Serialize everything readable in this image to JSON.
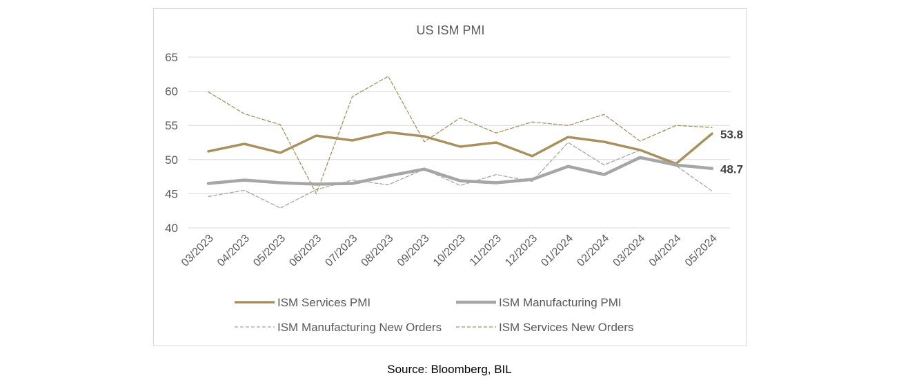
{
  "source_text": "Source: Bloomberg, BIL",
  "colors": {
    "services": "#A8915E",
    "manufacturing": "#A6A6A6",
    "manufacturing_new_orders": "#A6A6A6",
    "services_new_orders": "#A8915E",
    "gridline": "#d9d9d9",
    "axis_text": "#595959"
  },
  "chart_data": {
    "type": "line",
    "title": "US ISM PMI",
    "xlabel": "",
    "ylabel": "",
    "ylim": [
      40,
      65
    ],
    "yticks": [
      40,
      45,
      50,
      55,
      60,
      65
    ],
    "grid": true,
    "legend_position": "bottom",
    "x": [
      "03/2023",
      "04/2023",
      "05/2023",
      "06/2023",
      "07/2023",
      "08/2023",
      "09/2023",
      "10/2023",
      "11/2023",
      "12/2023",
      "01/2024",
      "02/2024",
      "03/2024",
      "04/2024",
      "05/2024"
    ],
    "series": [
      {
        "name": "ISM Services PMI",
        "style": "solid-thick",
        "color": "#A8915E",
        "values": [
          51.2,
          52.3,
          51.0,
          53.5,
          52.8,
          54.0,
          53.4,
          51.9,
          52.5,
          50.5,
          53.3,
          52.6,
          51.4,
          49.4,
          53.8
        ]
      },
      {
        "name": "ISM Manufacturing PMI",
        "style": "solid-thick",
        "color": "#A6A6A6",
        "values": [
          46.5,
          47.0,
          46.6,
          46.4,
          46.5,
          47.6,
          48.6,
          46.9,
          46.6,
          47.1,
          49.0,
          47.8,
          50.3,
          49.2,
          48.7
        ]
      },
      {
        "name": "ISM Manufacturing New Orders",
        "style": "dashed-thin",
        "color": "#A6A6A6",
        "values": [
          44.6,
          45.5,
          42.9,
          45.6,
          47.0,
          46.3,
          48.6,
          46.2,
          47.8,
          46.8,
          52.5,
          49.2,
          51.4,
          49.1,
          45.4
        ]
      },
      {
        "name": "ISM Services New Orders",
        "style": "dashed-thin",
        "color": "#A8915E",
        "values": [
          59.9,
          56.7,
          55.1,
          45.0,
          59.2,
          62.2,
          52.6,
          56.1,
          53.9,
          55.5,
          55.0,
          56.6,
          52.7,
          55.0,
          54.7
        ]
      }
    ],
    "annotations": [
      {
        "text": "53.8",
        "series": "ISM Services PMI"
      },
      {
        "text": "48.7",
        "series": "ISM Manufacturing PMI"
      }
    ]
  }
}
